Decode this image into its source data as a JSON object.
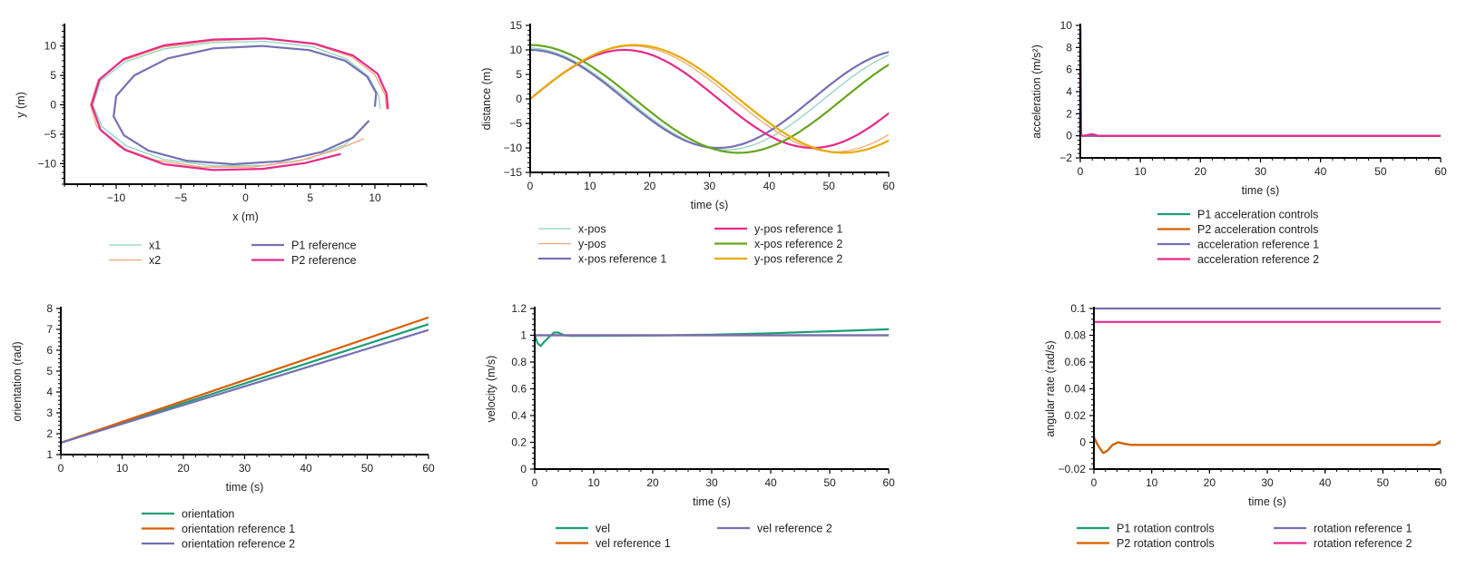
{
  "chart_data": [
    {
      "id": "trajectory",
      "type": "line",
      "xlabel": "x (m)",
      "ylabel": "y (m)",
      "xlim": [
        -14,
        14
      ],
      "ylim": [
        -13.5,
        13.5
      ],
      "xticks": [
        -10,
        -5,
        0,
        5,
        10
      ],
      "yticks": [
        -10,
        -5,
        0,
        5,
        10
      ],
      "legend_placement": "bottom",
      "series": [
        {
          "name": "x1",
          "color": "#8fd5bd",
          "width": 1.3,
          "points": [
            [
              9.3,
              -3.2
            ],
            [
              7.7,
              -6.8
            ],
            [
              4.9,
              -9.2
            ],
            [
              1.5,
              -10.3
            ],
            [
              -2.5,
              -10.4
            ],
            [
              -6.3,
              -9.3
            ],
            [
              -9.2,
              -7.0
            ],
            [
              -11.1,
              -3.7
            ],
            [
              -11.8,
              0.0
            ],
            [
              -11.2,
              4.1
            ],
            [
              -9.3,
              7.3
            ],
            [
              -6.3,
              9.5
            ],
            [
              -2.5,
              10.6
            ],
            [
              1.5,
              10.8
            ],
            [
              5.1,
              9.9
            ],
            [
              7.8,
              7.8
            ],
            [
              9.5,
              4.8
            ],
            [
              10.3,
              1.5
            ],
            [
              10.4,
              -0.6
            ]
          ]
        },
        {
          "name": "x2",
          "color": "#f0a878",
          "width": 1.3,
          "points": [
            [
              9.1,
              -5.8
            ],
            [
              7.0,
              -7.7
            ],
            [
              4.0,
              -9.6
            ],
            [
              0.5,
              -10.6
            ],
            [
              -3.3,
              -10.6
            ],
            [
              -7.0,
              -9.4
            ],
            [
              -9.8,
              -7.1
            ],
            [
              -11.5,
              -3.7
            ],
            [
              -12.0,
              0.0
            ],
            [
              -11.4,
              4.2
            ],
            [
              -9.5,
              7.5
            ],
            [
              -6.4,
              9.8
            ],
            [
              -2.5,
              10.9
            ],
            [
              1.5,
              11.2
            ],
            [
              5.3,
              10.3
            ],
            [
              8.2,
              8.2
            ],
            [
              10.0,
              5.1
            ],
            [
              10.8,
              1.6
            ],
            [
              10.9,
              -0.7
            ]
          ]
        },
        {
          "name": "P1 reference",
          "color": "#7570b3",
          "width": 2.2,
          "points": [
            [
              9.5,
              -2.8
            ],
            [
              8.3,
              -5.6
            ],
            [
              5.9,
              -8.0
            ],
            [
              2.7,
              -9.6
            ],
            [
              -1.0,
              -10.1
            ],
            [
              -4.6,
              -9.5
            ],
            [
              -7.5,
              -7.8
            ],
            [
              -9.4,
              -5.2
            ],
            [
              -10.2,
              -2.0
            ],
            [
              -10.0,
              1.5
            ],
            [
              -8.6,
              5.0
            ],
            [
              -6.0,
              7.9
            ],
            [
              -2.5,
              9.6
            ],
            [
              1.3,
              10.0
            ],
            [
              4.9,
              9.3
            ],
            [
              7.7,
              7.5
            ],
            [
              9.4,
              4.8
            ],
            [
              10.1,
              2.0
            ],
            [
              10.0,
              -0.2
            ]
          ]
        },
        {
          "name": "P2 reference",
          "color": "#e7298a",
          "width": 2.2,
          "points": [
            [
              7.3,
              -8.4
            ],
            [
              4.6,
              -9.9
            ],
            [
              1.3,
              -10.9
            ],
            [
              -2.5,
              -11.1
            ],
            [
              -6.3,
              -10.1
            ],
            [
              -9.3,
              -7.7
            ],
            [
              -11.2,
              -4.3
            ],
            [
              -11.9,
              0.0
            ],
            [
              -11.3,
              4.3
            ],
            [
              -9.4,
              7.8
            ],
            [
              -6.3,
              10.1
            ],
            [
              -2.5,
              11.1
            ],
            [
              1.5,
              11.3
            ],
            [
              5.3,
              10.4
            ],
            [
              8.3,
              8.4
            ],
            [
              10.2,
              5.3
            ],
            [
              10.9,
              1.9
            ],
            [
              11.0,
              -0.6
            ]
          ]
        }
      ]
    },
    {
      "id": "positions",
      "type": "line",
      "xlabel": "time (s)",
      "ylabel": "distance (m)",
      "xlim": [
        0,
        60
      ],
      "ylim": [
        -15,
        15
      ],
      "xticks": [
        0,
        10,
        20,
        30,
        40,
        50,
        60
      ],
      "yticks": [
        -15,
        -10,
        -5,
        0,
        5,
        10,
        15
      ],
      "legend_placement": "bottom",
      "series": [
        {
          "name": "x-pos",
          "color": "#8fd5bd",
          "width": 1.3,
          "func": "cos",
          "amp": 10.4,
          "period": 66,
          "phase": 0.03
        },
        {
          "name": "y-pos",
          "color": "#f0a878",
          "width": 1.3,
          "func": "sin",
          "amp": 10.8,
          "period": 68,
          "phase": 0.0
        },
        {
          "name": "x-pos reference 1",
          "color": "#7570b3",
          "width": 2.2,
          "func": "cos",
          "amp": 10.0,
          "period": 63,
          "phase": 0.0
        },
        {
          "name": "y-pos reference 1",
          "color": "#e7298a",
          "width": 2.2,
          "func": "sin",
          "amp": 10.0,
          "period": 63,
          "phase": 0.0
        },
        {
          "name": "x-pos reference 2",
          "color": "#66a61e",
          "width": 2.2,
          "func": "cos",
          "amp": 11.0,
          "period": 69.8,
          "phase": 0.0
        },
        {
          "name": "y-pos reference 2",
          "color": "#e6ab02",
          "width": 2.2,
          "func": "sin",
          "amp": 11.0,
          "period": 69.8,
          "phase": 0.0
        }
      ]
    },
    {
      "id": "acceleration",
      "type": "line",
      "xlabel": "time (s)",
      "ylabel": "acceleration (m/s²)",
      "xlim": [
        0,
        60
      ],
      "ylim": [
        -2,
        10
      ],
      "xticks": [
        0,
        10,
        20,
        30,
        40,
        50,
        60
      ],
      "yticks": [
        -2,
        0,
        2,
        4,
        6,
        8,
        10
      ],
      "legend_placement": "bottom",
      "series": [
        {
          "name": "P1 acceleration controls",
          "color": "#1b9e77",
          "width": 2.2,
          "points": [
            [
              0,
              0
            ],
            [
              60,
              0
            ]
          ]
        },
        {
          "name": "P2 acceleration controls",
          "color": "#d95f02",
          "width": 2.2,
          "points": [
            [
              0,
              0
            ],
            [
              60,
              0
            ]
          ]
        },
        {
          "name": "acceleration reference 1",
          "color": "#7570b3",
          "width": 2.2,
          "points": [
            [
              0,
              0
            ],
            [
              60,
              0
            ]
          ]
        },
        {
          "name": "acceleration reference 2",
          "color": "#e7298a",
          "width": 2.2,
          "points": [
            [
              0,
              10
            ],
            [
              0.05,
              9.5
            ],
            [
              0.15,
              0.1
            ],
            [
              0.5,
              0
            ],
            [
              2,
              0.15
            ],
            [
              3,
              0
            ],
            [
              60,
              0
            ]
          ]
        }
      ]
    },
    {
      "id": "orientation",
      "type": "line",
      "xlabel": "time (s)",
      "ylabel": "orientation (rad)",
      "xlim": [
        0,
        60
      ],
      "ylim": [
        1,
        8
      ],
      "xticks": [
        0,
        10,
        20,
        30,
        40,
        50,
        60
      ],
      "yticks": [
        1,
        2,
        3,
        4,
        5,
        6,
        7,
        8
      ],
      "legend_placement": "bottom",
      "series": [
        {
          "name": "orientation",
          "color": "#1b9e77",
          "width": 2.2,
          "points": [
            [
              0,
              1.57
            ],
            [
              60,
              7.25
            ]
          ]
        },
        {
          "name": "orientation reference 1",
          "color": "#d95f02",
          "width": 2.2,
          "points": [
            [
              0,
              1.57
            ],
            [
              60,
              7.57
            ]
          ]
        },
        {
          "name": "orientation reference 2",
          "color": "#7570b3",
          "width": 2.2,
          "points": [
            [
              0,
              1.57
            ],
            [
              60,
              6.97
            ]
          ]
        }
      ]
    },
    {
      "id": "velocity",
      "type": "line",
      "xlabel": "time (s)",
      "ylabel": "velocity (m/s)",
      "xlim": [
        0,
        60
      ],
      "ylim": [
        0,
        1.2
      ],
      "xticks": [
        0,
        10,
        20,
        30,
        40,
        50,
        60
      ],
      "yticks": [
        0,
        0.2,
        0.4,
        0.6,
        0.8,
        1,
        1.2
      ],
      "legend_placement": "bottom",
      "series": [
        {
          "name": "vel",
          "color": "#1b9e77",
          "width": 2.2,
          "points": [
            [
              0,
              1.0
            ],
            [
              0.5,
              0.94
            ],
            [
              1.0,
              0.92
            ],
            [
              1.6,
              0.95
            ],
            [
              2.5,
              0.99
            ],
            [
              3.3,
              1.02
            ],
            [
              4.0,
              1.02
            ],
            [
              5.0,
              1.0
            ],
            [
              6,
              0.995
            ],
            [
              10,
              0.995
            ],
            [
              20,
              0.998
            ],
            [
              30,
              1.005
            ],
            [
              40,
              1.015
            ],
            [
              50,
              1.03
            ],
            [
              60,
              1.045
            ]
          ]
        },
        {
          "name": "vel reference 1",
          "color": "#d95f02",
          "width": 2.2,
          "points": [
            [
              0,
              1.0
            ],
            [
              60,
              1.0
            ]
          ]
        },
        {
          "name": "vel reference 2",
          "color": "#7570b3",
          "width": 2.2,
          "points": [
            [
              0,
              1.0
            ],
            [
              60,
              1.0
            ]
          ]
        }
      ]
    },
    {
      "id": "angular-rate",
      "type": "line",
      "xlabel": "time (s)",
      "ylabel": "angular rate (rad/s)",
      "xlim": [
        0,
        60
      ],
      "ylim": [
        -0.02,
        0.1
      ],
      "xticks": [
        0,
        10,
        20,
        30,
        40,
        50,
        60
      ],
      "yticks": [
        -0.02,
        0,
        0.02,
        0.04,
        0.06,
        0.08,
        0.1
      ],
      "legend_placement": "bottom",
      "series": [
        {
          "name": "P1 rotation controls",
          "color": "#1b9e77",
          "width": 2.2,
          "points": [
            [
              0,
              0.003
            ],
            [
              0.8,
              -0.003
            ],
            [
              1.6,
              -0.008
            ],
            [
              2.4,
              -0.006
            ],
            [
              3.2,
              -0.002
            ],
            [
              4.2,
              0.0
            ],
            [
              5.2,
              -0.001
            ],
            [
              6.5,
              -0.002
            ],
            [
              8,
              -0.002
            ],
            [
              15,
              -0.002
            ],
            [
              30,
              -0.002
            ],
            [
              45,
              -0.002
            ],
            [
              59,
              -0.002
            ],
            [
              60,
              0.0
            ]
          ]
        },
        {
          "name": "P2 rotation controls",
          "color": "#d95f02",
          "width": 2.2,
          "points": [
            [
              0,
              0.004
            ],
            [
              0.8,
              -0.003
            ],
            [
              1.6,
              -0.008
            ],
            [
              2.4,
              -0.006
            ],
            [
              3.2,
              -0.002
            ],
            [
              4.2,
              0.0
            ],
            [
              5.2,
              -0.001
            ],
            [
              6.5,
              -0.002
            ],
            [
              8,
              -0.002
            ],
            [
              15,
              -0.002
            ],
            [
              30,
              -0.002
            ],
            [
              45,
              -0.002
            ],
            [
              59,
              -0.002
            ],
            [
              60,
              0.001
            ]
          ]
        },
        {
          "name": "rotation reference 1",
          "color": "#7570b3",
          "width": 2.2,
          "points": [
            [
              0,
              0.1
            ],
            [
              60,
              0.1
            ]
          ]
        },
        {
          "name": "rotation reference 2",
          "color": "#e7298a",
          "width": 2.2,
          "points": [
            [
              0,
              0.09
            ],
            [
              60,
              0.09
            ]
          ]
        }
      ]
    }
  ]
}
